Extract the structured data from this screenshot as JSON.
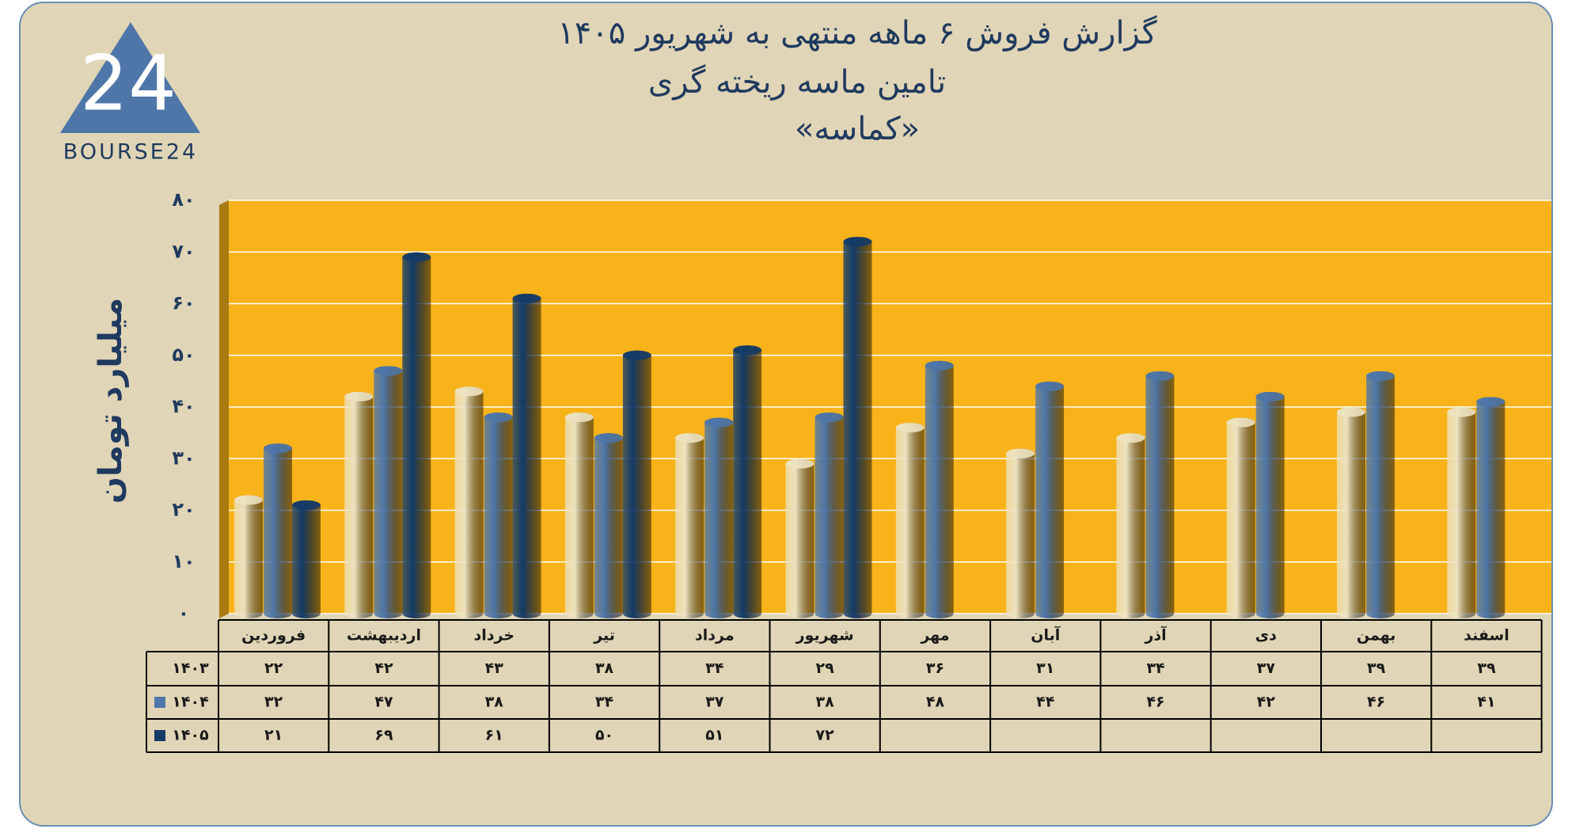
{
  "logo": {
    "mark": "24",
    "text": "BOURSE24"
  },
  "chart_data": {
    "type": "bar",
    "title": "گزارش  فروش ۶ ماهه منتهی به شهریور ۱۴۰۵",
    "subtitle": "تامین ماسه ریخته گری",
    "company": "«کماسه»",
    "y_label": "میلیارد تومان",
    "categories": [
      "فروردین",
      "اردیبهشت",
      "خرداد",
      "تیر",
      "مرداد",
      "شهریور",
      "مهر",
      "آبان",
      "آذر",
      "دی",
      "بهمن",
      "اسفند"
    ],
    "series": [
      {
        "name": "۱۴۰۳",
        "color": "#ece2c0",
        "values": [
          22,
          42,
          43,
          38,
          34,
          29,
          36,
          31,
          34,
          37,
          39,
          39
        ],
        "value_labels": [
          "۲۲",
          "۴۲",
          "۴۳",
          "۳۸",
          "۳۴",
          "۲۹",
          "۳۶",
          "۳۱",
          "۳۴",
          "۳۷",
          "۳۹",
          "۳۹"
        ]
      },
      {
        "name": "۱۴۰۴",
        "color": "#4e76a8",
        "values": [
          32,
          47,
          38,
          34,
          37,
          38,
          48,
          44,
          46,
          42,
          46,
          41
        ],
        "value_labels": [
          "۳۲",
          "۴۷",
          "۳۸",
          "۳۴",
          "۳۷",
          "۳۸",
          "۴۸",
          "۴۴",
          "۴۶",
          "۴۲",
          "۴۶",
          "۴۱"
        ]
      },
      {
        "name": "۱۴۰۵",
        "color": "#143b68",
        "values": [
          21,
          69,
          61,
          50,
          51,
          72,
          null,
          null,
          null,
          null,
          null,
          null
        ],
        "value_labels": [
          "۲۱",
          "۶۹",
          "۶۱",
          "۵۰",
          "۵۱",
          "۷۲",
          null,
          null,
          null,
          null,
          null,
          null
        ]
      }
    ],
    "ylim": [
      0,
      80
    ],
    "yticks": [
      {
        "value": 0,
        "label": "۰"
      },
      {
        "value": 10,
        "label": "۱۰"
      },
      {
        "value": 20,
        "label": "۲۰"
      },
      {
        "value": 30,
        "label": "۳۰"
      },
      {
        "value": 40,
        "label": "۴۰"
      },
      {
        "value": 50,
        "label": "۵۰"
      },
      {
        "value": 60,
        "label": "۶۰"
      },
      {
        "value": 70,
        "label": "۷۰"
      },
      {
        "value": 80,
        "label": "۸۰"
      }
    ],
    "grid": true,
    "plot_color": "#f8b31a"
  }
}
